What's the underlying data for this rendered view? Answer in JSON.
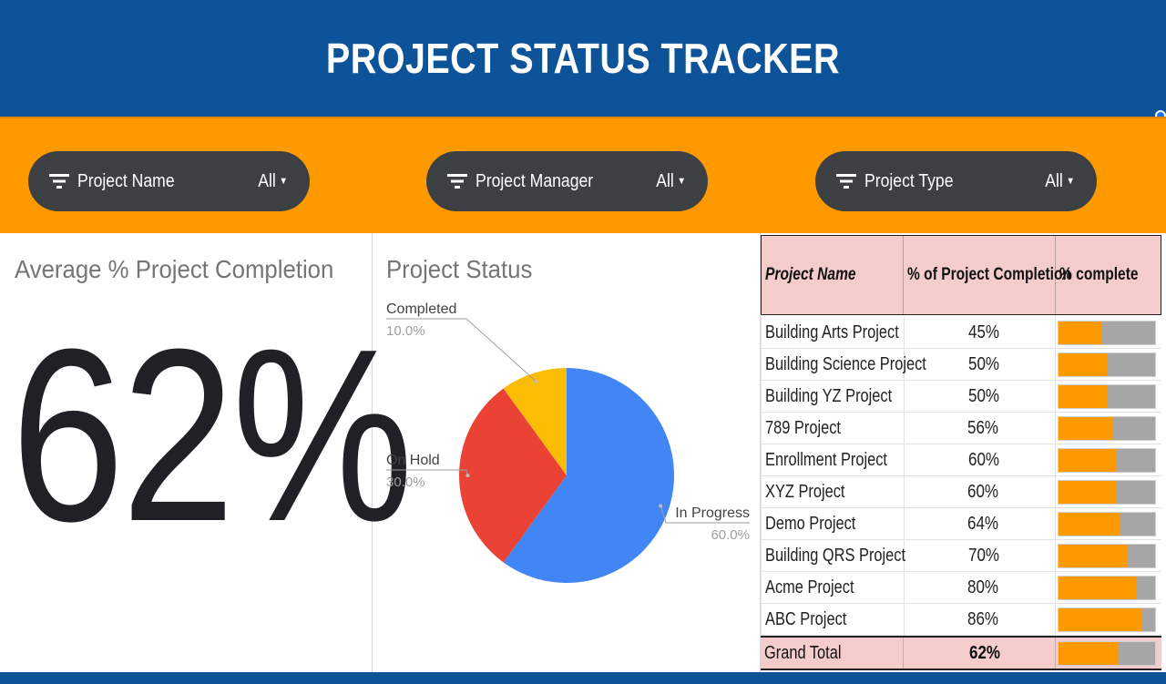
{
  "header": {
    "title": "PROJECT STATUS TRACKER"
  },
  "colors": {
    "header_bg": "#0d5399",
    "filter_band_bg": "#ff9900",
    "filter_chip_bg": "#3c4043",
    "table_header_bg": "#f4cccc",
    "bar_fill": "#ff9900",
    "bar_track": "#a6a6a6"
  },
  "filters": [
    {
      "label": "Project Name",
      "value": "All",
      "icon": "filter-icon"
    },
    {
      "label": "Project Manager",
      "value": "All",
      "icon": "filter-icon"
    },
    {
      "label": "Project Type",
      "value": "All",
      "icon": "filter-icon"
    }
  ],
  "kpi": {
    "title": "Average % Project Completion",
    "value": "62%"
  },
  "pie": {
    "title": "Project Status",
    "slices": [
      {
        "label": "In Progress",
        "pct_label": "60.0%",
        "value": 60,
        "color": "#4285f4"
      },
      {
        "label": "On Hold",
        "pct_label": "30.0%",
        "value": 30,
        "color": "#ea4335"
      },
      {
        "label": "Completed",
        "pct_label": "10.0%",
        "value": 10,
        "color": "#fbbc04"
      }
    ]
  },
  "table": {
    "headers": [
      "Project Name",
      "% of Project Completion",
      "% complete"
    ],
    "rows": [
      {
        "name": "Building Arts Project",
        "pct": "45%",
        "fraction": 0.45
      },
      {
        "name": "Building Science Project",
        "pct": "50%",
        "fraction": 0.5
      },
      {
        "name": "Building YZ Project",
        "pct": "50%",
        "fraction": 0.5
      },
      {
        "name": "789 Project",
        "pct": "56%",
        "fraction": 0.56
      },
      {
        "name": "Enrollment Project",
        "pct": "60%",
        "fraction": 0.6
      },
      {
        "name": "XYZ Project",
        "pct": "60%",
        "fraction": 0.6
      },
      {
        "name": "Demo Project",
        "pct": "64%",
        "fraction": 0.64
      },
      {
        "name": "Building QRS Project",
        "pct": "70%",
        "fraction": 0.7
      },
      {
        "name": "Acme Project",
        "pct": "80%",
        "fraction": 0.8
      },
      {
        "name": "ABC Project",
        "pct": "86%",
        "fraction": 0.86
      }
    ],
    "total": {
      "name": "Grand Total",
      "pct": "62%",
      "fraction": 0.62
    }
  }
}
